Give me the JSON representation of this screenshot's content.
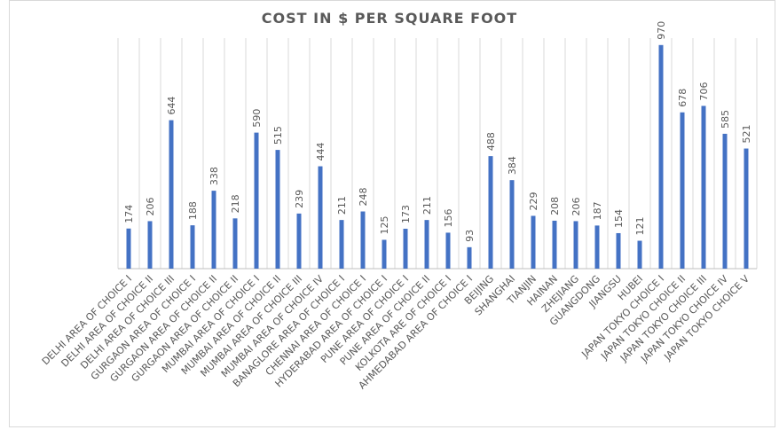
{
  "chart_data": {
    "type": "bar",
    "title": "COST IN $ PER SQUARE FOOT",
    "xlabel": "",
    "ylabel": "",
    "ylim": [
      0,
      1000
    ],
    "grid": "vertical",
    "bar_color": "#4472C4",
    "categories": [
      "DELHI AREA OF CHOICE I",
      "DELHI AREA OF CHOICE II",
      "DELHI AREA OF CHOICE III",
      "GURGAON AREA OF CHOICE I",
      "GURGAON AREA OF CHOICE II",
      "GURGAON AREA OF CHOICE II",
      "MUMBAI AREA OF CHOICE I",
      "MUMBAI AREA OF CHOICE II",
      "MUMBAI AREA OF CHOICE III",
      "MUMBAI AREA OF CHOICE IV",
      "BANAGLORE AREA OF CHOICE I",
      "CHENNAI AREA OF CHOICE I",
      "HYDERABAD AREA OF CHOICE I",
      "PUNE AREA OF CHOICE I",
      "PUNE AREA OF CHOICE II",
      "KOLKOTA ARE OF CHOICE I",
      "AHMEDABAD AREA OF CHOICE I",
      "BEIJING",
      "SHANGHAI",
      "TIANJIN",
      "HAINAN",
      "ZHEJIANG",
      "GUANGDONG",
      "JIANGSU",
      "HUBEI",
      "JAPAN TOKYO CHOICE I",
      "JAPAN TOKYO CHOICE II",
      "JAPAN TOKYO CHOICE III",
      "JAPAN TOKYO CHOICE IV",
      "JAPAN TOKYO CHOICE V"
    ],
    "values": [
      174,
      206,
      644,
      188,
      338,
      218,
      590,
      515,
      239,
      444,
      211,
      248,
      125,
      173,
      211,
      156,
      93,
      488,
      384,
      229,
      208,
      206,
      187,
      154,
      121,
      970,
      678,
      706,
      585,
      521
    ]
  }
}
